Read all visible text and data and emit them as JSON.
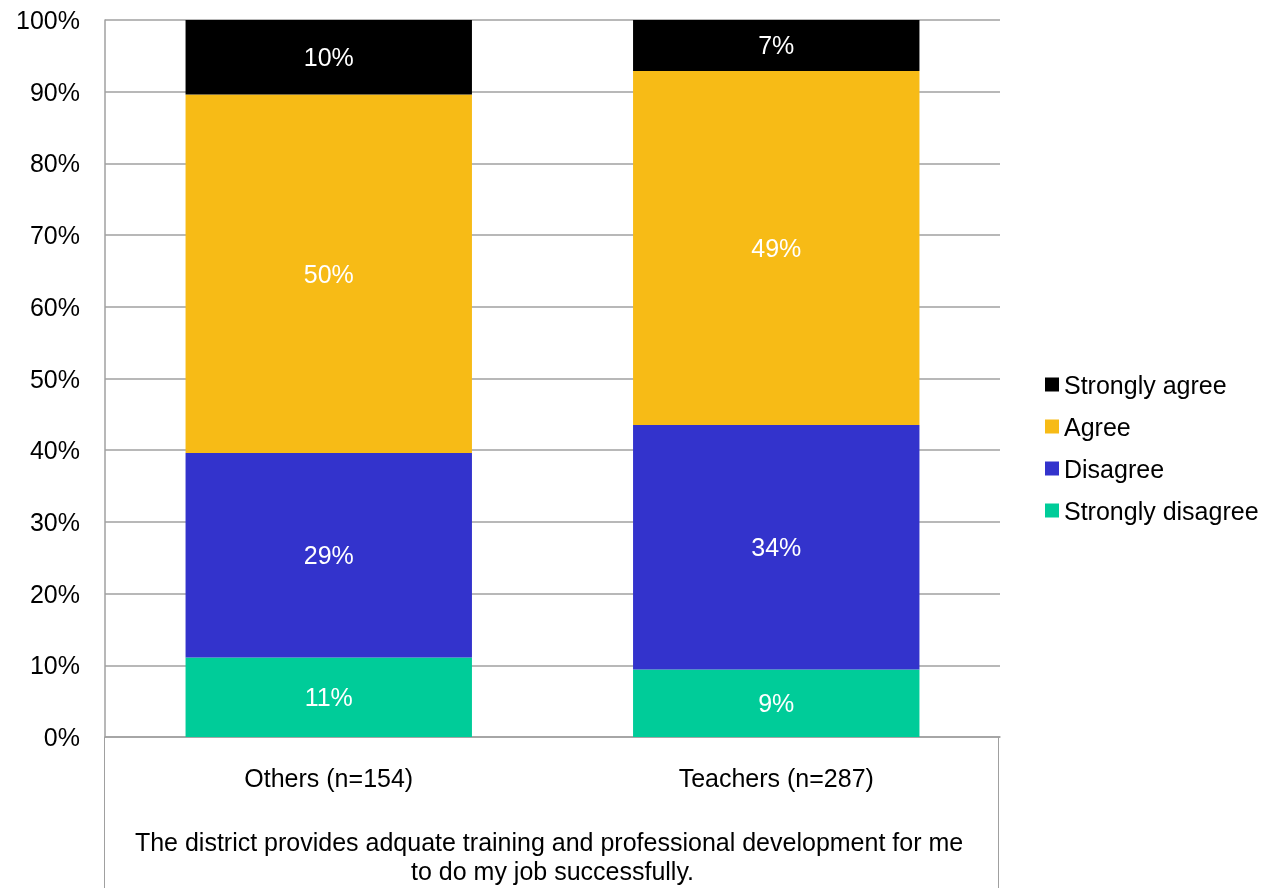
{
  "chart_data": {
    "type": "bar",
    "stacked": true,
    "categories": [
      "Others (n=154)",
      "Teachers (n=287)"
    ],
    "xlabel": "The district provides adquate training and professional development for me to do my job successfully.",
    "series": [
      {
        "name": "Strongly disagree",
        "color": "#00cc99",
        "values": [
          11.1,
          9.4
        ],
        "value_labels": [
          "11%",
          "9%"
        ]
      },
      {
        "name": "Disagree",
        "color": "#3333cc",
        "values": [
          28.5,
          34.1
        ],
        "value_labels": [
          "29%",
          "34%"
        ]
      },
      {
        "name": "Agree",
        "color": "#f7bb16",
        "values": [
          50.0,
          49.4
        ],
        "value_labels": [
          "50%",
          "49%"
        ]
      },
      {
        "name": "Strongly agree",
        "color": "#000000",
        "values": [
          10.4,
          7.1
        ],
        "value_labels": [
          "10%",
          "7%"
        ]
      }
    ],
    "ylim": [
      0,
      100
    ],
    "yticks": [
      {
        "value": 0,
        "label": "0%"
      },
      {
        "value": 10,
        "label": "10%"
      },
      {
        "value": 20,
        "label": "20%"
      },
      {
        "value": 30,
        "label": "30%"
      },
      {
        "value": 40,
        "label": "40%"
      },
      {
        "value": 50,
        "label": "50%"
      },
      {
        "value": 60,
        "label": "60%"
      },
      {
        "value": 70,
        "label": "70%"
      },
      {
        "value": 80,
        "label": "80%"
      },
      {
        "value": 90,
        "label": "90%"
      },
      {
        "value": 100,
        "label": "100%"
      }
    ],
    "grid": "y",
    "legend": "right"
  }
}
